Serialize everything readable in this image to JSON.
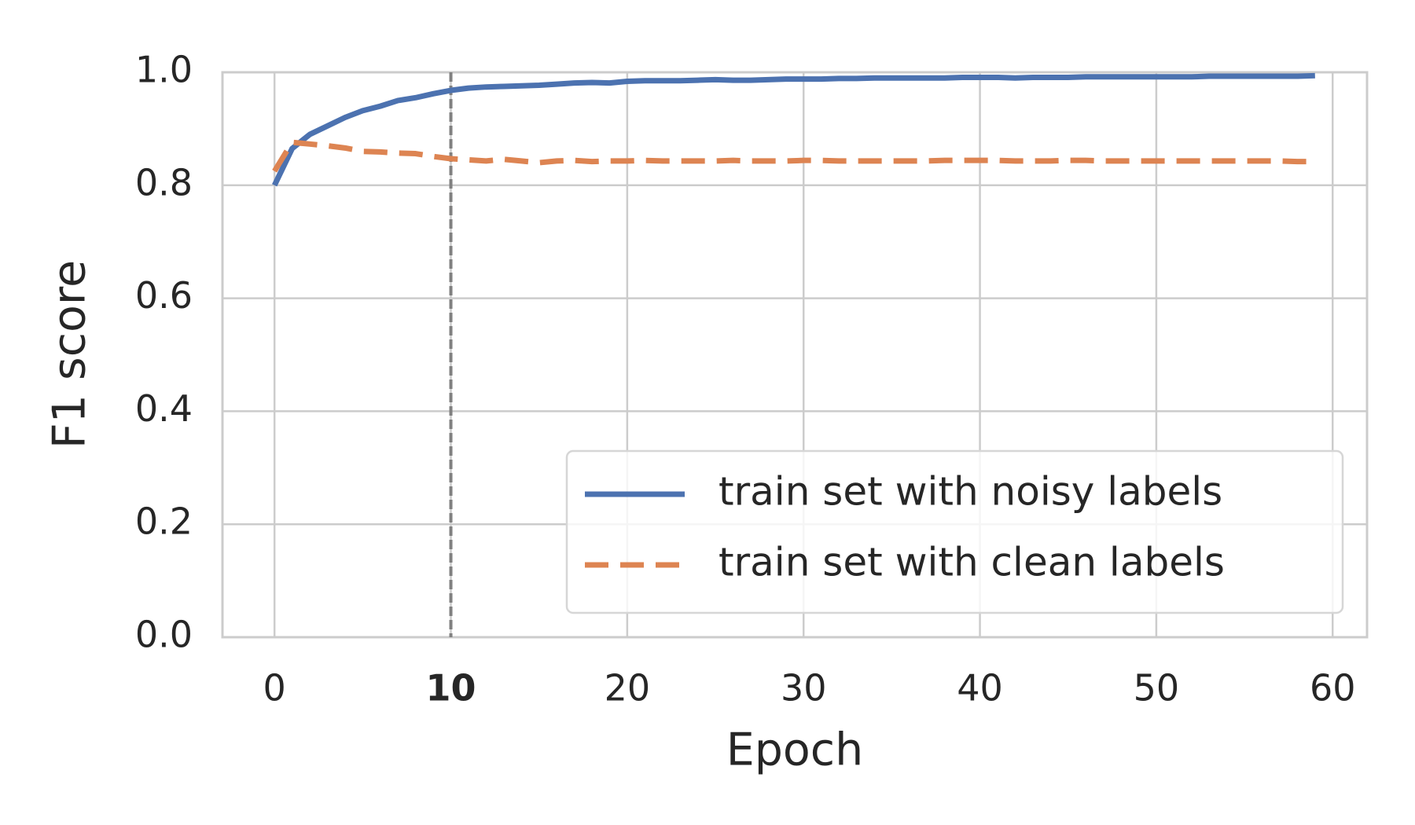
{
  "chart_data": {
    "type": "line",
    "x_label": "Epoch",
    "y_label": "F1 score",
    "x": [
      0,
      1,
      2,
      3,
      4,
      5,
      6,
      7,
      8,
      9,
      10,
      11,
      12,
      13,
      14,
      15,
      16,
      17,
      18,
      19,
      20,
      21,
      22,
      23,
      24,
      25,
      26,
      27,
      28,
      29,
      30,
      31,
      32,
      33,
      34,
      35,
      36,
      37,
      38,
      39,
      40,
      41,
      42,
      43,
      44,
      45,
      46,
      47,
      48,
      49,
      50,
      51,
      52,
      53,
      54,
      55,
      56,
      57,
      58,
      59
    ],
    "series": [
      {
        "name": "train set with noisy labels",
        "color": "#4c72b0",
        "style": "solid",
        "values": [
          0.8,
          0.865,
          0.89,
          0.905,
          0.92,
          0.932,
          0.94,
          0.95,
          0.955,
          0.962,
          0.968,
          0.972,
          0.974,
          0.975,
          0.976,
          0.977,
          0.979,
          0.981,
          0.982,
          0.981,
          0.984,
          0.985,
          0.985,
          0.985,
          0.986,
          0.987,
          0.986,
          0.986,
          0.987,
          0.988,
          0.988,
          0.988,
          0.989,
          0.989,
          0.99,
          0.99,
          0.99,
          0.99,
          0.99,
          0.991,
          0.991,
          0.991,
          0.99,
          0.991,
          0.991,
          0.991,
          0.992,
          0.992,
          0.992,
          0.992,
          0.992,
          0.992,
          0.992,
          0.993,
          0.993,
          0.993,
          0.993,
          0.993,
          0.993,
          0.994
        ]
      },
      {
        "name": "train set with clean labels",
        "color": "#dd8452",
        "style": "dashed",
        "values": [
          0.825,
          0.876,
          0.873,
          0.87,
          0.866,
          0.86,
          0.859,
          0.857,
          0.856,
          0.851,
          0.847,
          0.845,
          0.843,
          0.846,
          0.843,
          0.84,
          0.843,
          0.844,
          0.842,
          0.843,
          0.843,
          0.844,
          0.843,
          0.843,
          0.843,
          0.843,
          0.844,
          0.843,
          0.843,
          0.843,
          0.844,
          0.844,
          0.843,
          0.843,
          0.843,
          0.843,
          0.843,
          0.843,
          0.844,
          0.844,
          0.844,
          0.844,
          0.843,
          0.843,
          0.843,
          0.844,
          0.844,
          0.843,
          0.843,
          0.843,
          0.843,
          0.843,
          0.843,
          0.843,
          0.843,
          0.843,
          0.843,
          0.843,
          0.842,
          0.842
        ]
      }
    ],
    "xlim": [
      -2.95,
      61.95
    ],
    "xticks": [
      0,
      10,
      20,
      30,
      40,
      50,
      60
    ],
    "ylim": [
      0,
      1
    ],
    "yticks": [
      {
        "value": 0,
        "label": "0.0"
      },
      0.2,
      0.4,
      0.6,
      0.8,
      {
        "value": 1,
        "label": "1.0"
      }
    ],
    "grid": true,
    "legend": "lower right",
    "vline": {
      "x": 10,
      "color": "#808080"
    }
  }
}
